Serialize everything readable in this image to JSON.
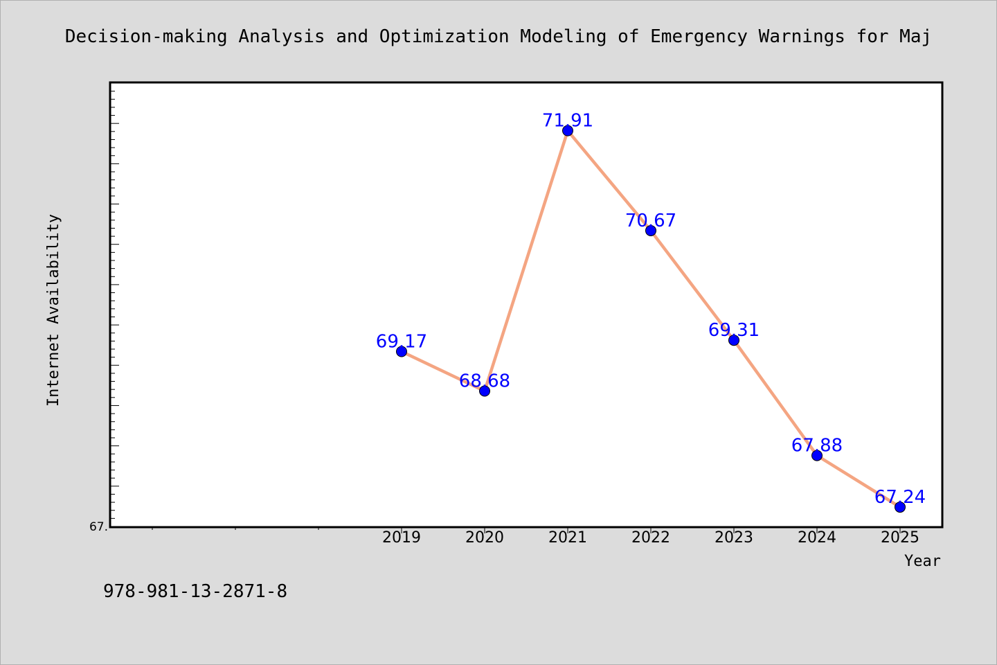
{
  "chart_data": {
    "type": "line",
    "title": "Decision-making Analysis and Optimization Modeling of Emergency Warnings for Maj",
    "xlabel": "Year",
    "ylabel": "Internet Availability",
    "x": [
      "2019",
      "2020",
      "2021",
      "2022",
      "2023",
      "2024",
      "2025"
    ],
    "series": [
      {
        "values": [
          69.17,
          68.68,
          71.91,
          70.67,
          69.31,
          67.88,
          67.24
        ]
      }
    ],
    "data_labels": [
      "69.17",
      "68.68",
      "71.91",
      "70.67",
      "69.31",
      "67.88",
      "67.24"
    ],
    "y_tick_labels": [
      "67."
    ],
    "ylim": [
      67.0,
      72.5
    ],
    "xlim_slots": 10,
    "grid": false,
    "colors": {
      "line": "#f4a582",
      "marker": "#0000ff",
      "label": "#0000ff"
    }
  },
  "footer": {
    "isbn": "978-981-13-2871-8"
  }
}
